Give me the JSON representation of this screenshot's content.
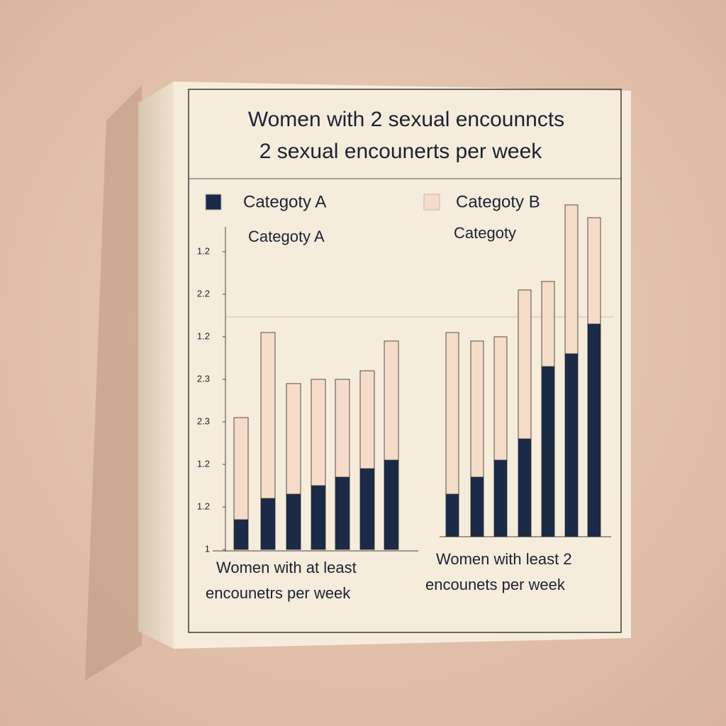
{
  "chart_data": {
    "type": "bar",
    "stacked": true,
    "title": [
      "Women with  2 sexual encounncts",
      "2 sexual encounerts per week"
    ],
    "series": [
      {
        "name": "Categoty A",
        "color": "#1b2a47"
      },
      {
        "name": "Categoty B",
        "color": "#f4dcc8"
      }
    ],
    "ylim": [
      0,
      7.8
    ],
    "yticks": [
      {
        "value": 0,
        "label": "1"
      },
      {
        "value": 1,
        "label": "1.2"
      },
      {
        "value": 2,
        "label": "1.2"
      },
      {
        "value": 3,
        "label": "2.3"
      },
      {
        "value": 4,
        "label": "2.3"
      },
      {
        "value": 5,
        "label": "1.2"
      },
      {
        "value": 6,
        "label": "2.2"
      },
      {
        "value": 7,
        "label": "1.2"
      }
    ],
    "panels": [
      {
        "subtitle": "Categoty A",
        "xlabel": [
          "Women with at least",
          "encounetrs per week"
        ],
        "values": [
          [
            0.7,
            1.2,
            1.3,
            1.5,
            1.7,
            1.9,
            2.1
          ],
          [
            2.4,
            3.9,
            2.6,
            2.5,
            2.3,
            2.3,
            2.8
          ]
        ]
      },
      {
        "subtitle": "Categoty",
        "xlabel": [
          "Women with least 2",
          "encounets per week"
        ],
        "values": [
          [
            1.0,
            1.4,
            1.8,
            2.3,
            4.0,
            4.3,
            5.0
          ],
          [
            3.8,
            3.2,
            2.9,
            3.5,
            2.0,
            3.5,
            2.5
          ]
        ]
      }
    ]
  }
}
